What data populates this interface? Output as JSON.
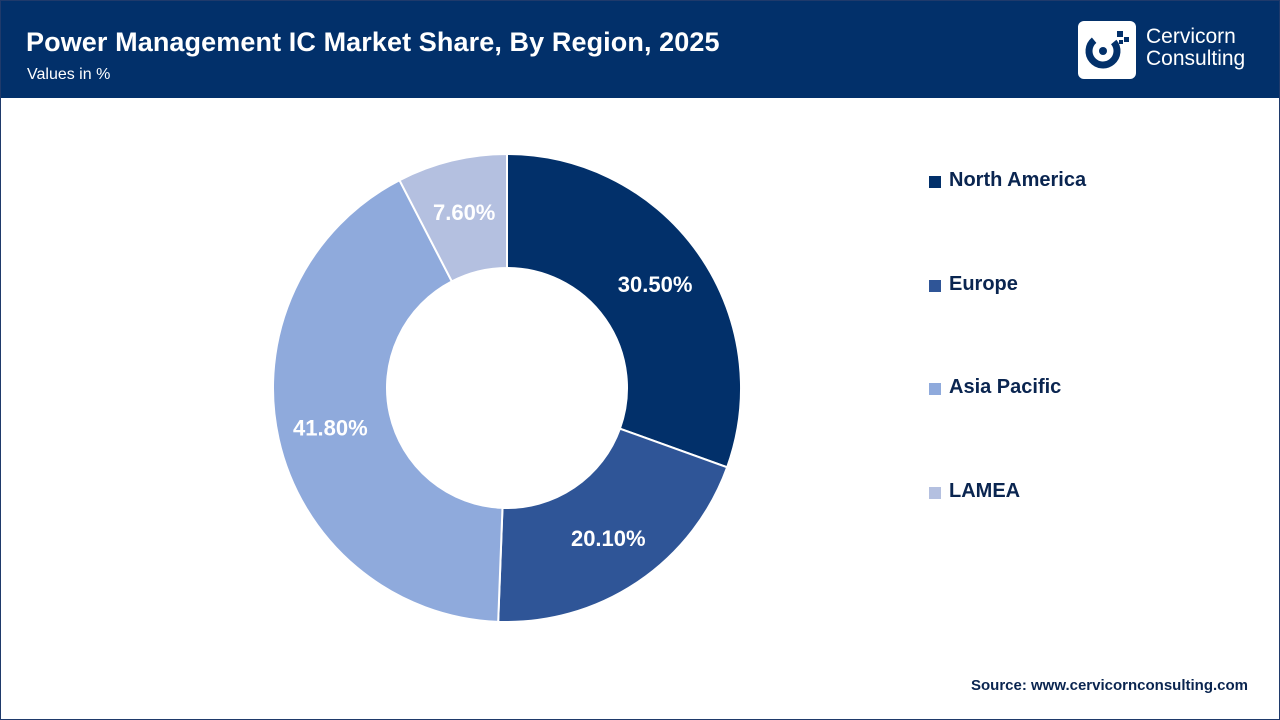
{
  "header": {
    "title": "Power Management IC Market Share, By Region, 2025",
    "subtitle": "Values in %",
    "logo_line1": "Cervicorn",
    "logo_line2": "Consulting",
    "logo_icon": "cervicorn-c-logo-icon"
  },
  "colors": {
    "header_bg": "#02306a",
    "north_america": "#02306a",
    "europe": "#2f5597",
    "asia_pacific": "#8faadc",
    "lamea": "#b4c0e0"
  },
  "chart_data": {
    "type": "pie",
    "variant": "donut",
    "title": "Power Management IC Market Share, By Region, 2025",
    "subtitle": "Values in %",
    "categories": [
      "North America",
      "Europe",
      "Asia Pacific",
      "LAMEA"
    ],
    "values": [
      30.5,
      20.1,
      41.8,
      7.6
    ],
    "labels": [
      "30.50%",
      "20.10%",
      "41.80%",
      "7.60%"
    ],
    "colors": [
      "#02306a",
      "#2f5597",
      "#8faadc",
      "#b4c0e0"
    ],
    "legend_position": "right"
  },
  "legend": [
    {
      "label": "North America"
    },
    {
      "label": "Europe"
    },
    {
      "label": "Asia Pacific"
    },
    {
      "label": "LAMEA"
    }
  ],
  "source": "Source: www.cervicornconsulting.com"
}
